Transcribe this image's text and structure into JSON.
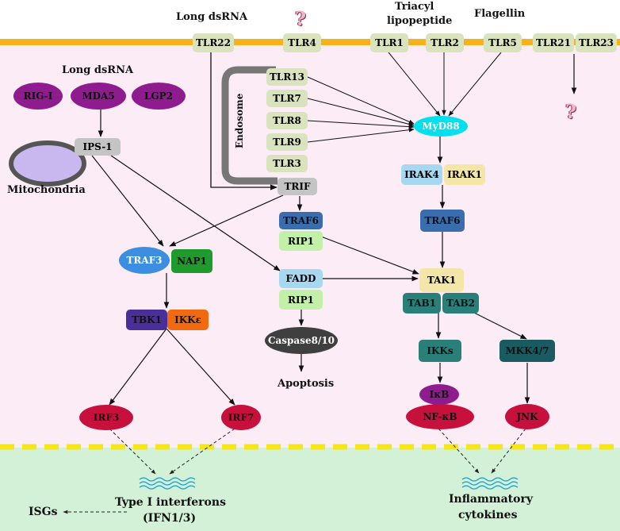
{
  "colors": {
    "membrane": "#f5b21b",
    "cytoplasm": "#fcecf6",
    "nucleus_area": "#d3f1d6",
    "tlr_box": "#d9e4bf",
    "purple": "#8e1c8e",
    "crimson": "#c8103c",
    "cyan": "#00e0ef",
    "steel_blue": "#3a6dad",
    "light_green": "#c3f0a8",
    "teal": "#2a7f78",
    "dark_teal": "#1a5b62",
    "gray": "#c4c4c4",
    "indigo": "#4a2e9a",
    "orange": "#f26a10",
    "green": "#1f9b2e",
    "dark_gray": "#3f3f3f",
    "pale_yellow": "#f4e6a8",
    "light_blue": "#a8d8ef",
    "blue_ellipse": "#3b8ee0"
  },
  "top_labels": {
    "long_dsrna_top": "Long dsRNA",
    "triacyl": "Triacyl",
    "lipopeptide": "lipopeptide",
    "flagellin": "Flagellin",
    "question": "?"
  },
  "membrane_receptors": {
    "tlr22": "TLR22",
    "tlr4": "TLR4",
    "tlr1": "TLR1",
    "tlr2": "TLR2",
    "tlr5": "TLR5",
    "tlr21": "TLR21",
    "tlr23": "TLR23"
  },
  "endosome": {
    "label": "Endosome",
    "tlr13": "TLR13",
    "tlr7": "TLR7",
    "tlr8": "TLR8",
    "tlr9": "TLR9",
    "tlr3": "TLR3"
  },
  "rlr": {
    "long_dsrna": "Long dsRNA",
    "rig1": "RIG-Ⅰ",
    "mda5": "MDA5",
    "lgp2": "LGP2",
    "ips1": "IPS-1",
    "mitochondria": "Mitochondria"
  },
  "nodes": {
    "myd88": "MyD88",
    "irak4": "IRAK4",
    "irak1": "IRAK1",
    "traf6_right": "TRAF6",
    "trif": "TRIF",
    "traf6_mid": "TRAF6",
    "rip1_top": "RIP1",
    "fadd": "FADD",
    "rip1_bottom": "RIP1",
    "caspase": "Caspase8/10",
    "apoptosis": "Apoptosis",
    "traf3": "TRAF3",
    "nap1": "NAP1",
    "tbk1": "TBK1",
    "ikke": "IKKε",
    "irf3": "IRF3",
    "irf7": "IRF7",
    "tak1": "TAK1",
    "tab1": "TAB1",
    "tab2": "TAB2",
    "ikks": "IKKs",
    "mkk47": "MKK4/7",
    "ikb": "IκB",
    "nfkb": "NF-κB",
    "jnk": "JNK"
  },
  "outputs": {
    "type1_line1": "Type I interferons",
    "type1_line2": "(IFN1/3)",
    "isgs": "ISGs",
    "inflam_line1": "Inflammatory",
    "inflam_line2": "cytokines"
  }
}
